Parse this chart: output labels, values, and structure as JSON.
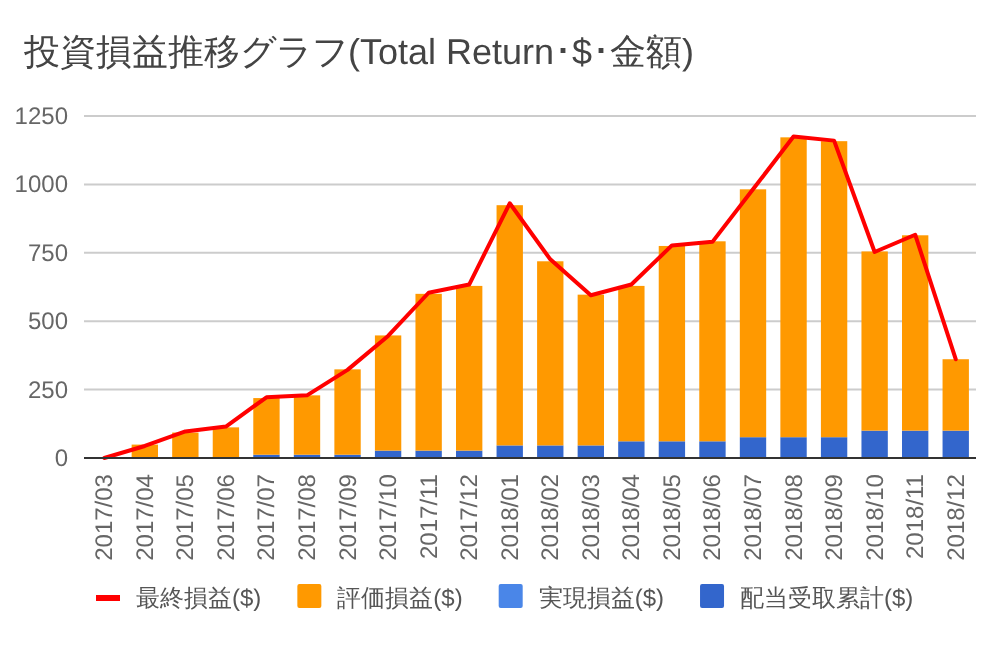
{
  "chart_data": {
    "type": "bar",
    "title": "投資損益推移グラフ(Total Return･$･金額)",
    "stacked": true,
    "categories": [
      "2017/03",
      "2017/04",
      "2017/05",
      "2017/06",
      "2017/07",
      "2017/08",
      "2017/09",
      "2017/10",
      "2017/11",
      "2017/12",
      "2018/01",
      "2018/02",
      "2018/03",
      "2018/04",
      "2018/05",
      "2018/06",
      "2018/07",
      "2018/08",
      "2018/09",
      "2018/10",
      "2018/11",
      "2018/12"
    ],
    "series": [
      {
        "name": "配当受取累計($)",
        "color": "#3366cc",
        "values": [
          0,
          0,
          0,
          0,
          12,
          12,
          12,
          27,
          27,
          27,
          46,
          46,
          46,
          61,
          61,
          61,
          76,
          76,
          76,
          100,
          100,
          100
        ]
      },
      {
        "name": "実現損益($)",
        "color": "#4a86e8",
        "values": [
          0,
          0,
          0,
          0,
          0,
          0,
          0,
          0,
          0,
          0,
          0,
          0,
          0,
          0,
          0,
          0,
          0,
          0,
          0,
          0,
          0,
          0
        ]
      },
      {
        "name": "評価損益($)",
        "color": "#ff9900",
        "values": [
          0,
          49,
          93,
          112,
          207,
          217,
          312,
          421,
          573,
          602,
          878,
          673,
          551,
          568,
          714,
          731,
          906,
          1096,
          1082,
          655,
          714,
          261
        ]
      },
      {
        "name": "最終損益($)",
        "type": "line",
        "color": "#ff0000",
        "values": [
          0,
          44,
          97,
          115,
          222,
          229,
          322,
          446,
          604,
          634,
          931,
          726,
          595,
          634,
          777,
          790,
          982,
          1175,
          1160,
          753,
          816,
          361
        ]
      }
    ],
    "ylim": [
      0,
      1250
    ],
    "yticks": [
      0,
      250,
      500,
      750,
      1000,
      1250
    ],
    "grid": "y",
    "legend": "bottom"
  }
}
